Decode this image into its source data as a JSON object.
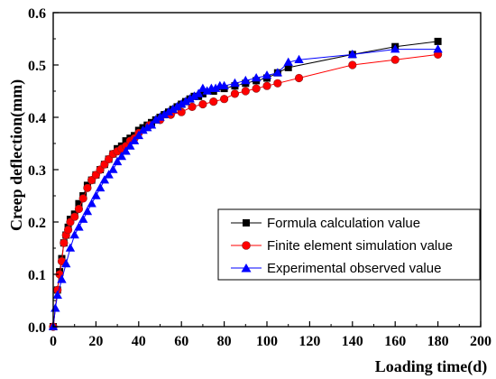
{
  "chart_data": {
    "type": "line",
    "title": "",
    "xlabel": "Loading time(d)",
    "ylabel": "Creep deflection(mm)",
    "xlim": [
      0,
      200
    ],
    "ylim": [
      0,
      0.6
    ],
    "x_ticks": [
      "0",
      "20",
      "40",
      "60",
      "80",
      "100",
      "120",
      "140",
      "160",
      "180",
      "200"
    ],
    "y_ticks": [
      "0.0",
      "0.1",
      "0.2",
      "0.3",
      "0.4",
      "0.5",
      "0.6"
    ],
    "grid": false,
    "legend_position": "bottom-right",
    "series": [
      {
        "name": "Formula calculation value",
        "color": "#000000",
        "marker": "square",
        "x": [
          0,
          2,
          3,
          4,
          5,
          6,
          7,
          8,
          10,
          12,
          14,
          16,
          18,
          20,
          22,
          24,
          26,
          28,
          30,
          32,
          34,
          36,
          38,
          40,
          42,
          44,
          46,
          48,
          50,
          52,
          54,
          56,
          58,
          60,
          62,
          64,
          66,
          68,
          70,
          75,
          80,
          85,
          90,
          95,
          100,
          105,
          110,
          140,
          160,
          180
        ],
        "y": [
          0,
          0.07,
          0.105,
          0.13,
          0.16,
          0.175,
          0.19,
          0.205,
          0.215,
          0.235,
          0.25,
          0.27,
          0.28,
          0.29,
          0.3,
          0.31,
          0.32,
          0.33,
          0.34,
          0.345,
          0.355,
          0.36,
          0.365,
          0.375,
          0.38,
          0.385,
          0.39,
          0.395,
          0.4,
          0.405,
          0.41,
          0.415,
          0.42,
          0.425,
          0.43,
          0.435,
          0.44,
          0.44,
          0.445,
          0.45,
          0.455,
          0.46,
          0.465,
          0.47,
          0.475,
          0.485,
          0.495,
          0.52,
          0.535,
          0.545
        ]
      },
      {
        "name": "Finite element simulation value",
        "color": "#ff0000",
        "marker": "circle",
        "x": [
          0,
          2,
          3,
          4,
          5,
          6,
          7,
          8,
          10,
          12,
          14,
          16,
          18,
          20,
          22,
          24,
          26,
          28,
          30,
          32,
          34,
          36,
          38,
          40,
          45,
          50,
          55,
          60,
          65,
          70,
          75,
          80,
          85,
          90,
          95,
          100,
          105,
          115,
          140,
          160,
          180
        ],
        "y": [
          0,
          0.07,
          0.1,
          0.125,
          0.16,
          0.175,
          0.185,
          0.2,
          0.21,
          0.225,
          0.245,
          0.265,
          0.28,
          0.29,
          0.3,
          0.31,
          0.32,
          0.33,
          0.335,
          0.34,
          0.345,
          0.355,
          0.36,
          0.37,
          0.385,
          0.395,
          0.405,
          0.41,
          0.42,
          0.425,
          0.43,
          0.435,
          0.445,
          0.45,
          0.455,
          0.46,
          0.465,
          0.475,
          0.5,
          0.51,
          0.52
        ]
      },
      {
        "name": "Experimental observed value",
        "color": "#0000ff",
        "marker": "triangle",
        "x": [
          0,
          1,
          2,
          4,
          6,
          8,
          10,
          12,
          14,
          16,
          18,
          20,
          22,
          24,
          26,
          28,
          30,
          32,
          34,
          36,
          38,
          40,
          42,
          44,
          46,
          48,
          50,
          52,
          54,
          56,
          58,
          60,
          62,
          64,
          66,
          68,
          70,
          72,
          74,
          76,
          78,
          80,
          85,
          90,
          95,
          100,
          105,
          110,
          115,
          140,
          160,
          180
        ],
        "y": [
          0,
          0.035,
          0.06,
          0.09,
          0.12,
          0.15,
          0.175,
          0.19,
          0.205,
          0.22,
          0.235,
          0.25,
          0.265,
          0.28,
          0.29,
          0.3,
          0.315,
          0.325,
          0.335,
          0.345,
          0.355,
          0.365,
          0.375,
          0.38,
          0.385,
          0.395,
          0.4,
          0.405,
          0.41,
          0.415,
          0.42,
          0.425,
          0.43,
          0.435,
          0.44,
          0.445,
          0.455,
          0.45,
          0.455,
          0.455,
          0.46,
          0.46,
          0.465,
          0.47,
          0.475,
          0.48,
          0.485,
          0.505,
          0.51,
          0.52,
          0.53,
          0.53
        ]
      }
    ]
  }
}
